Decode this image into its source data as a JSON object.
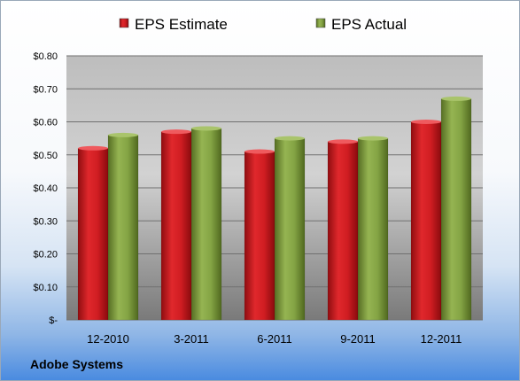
{
  "chart_data": {
    "type": "bar",
    "categories": [
      "12-2010",
      "3-2011",
      "6-2011",
      "9-2011",
      "12-2011"
    ],
    "series": [
      {
        "name": "EPS Estimate",
        "color": "#c8181d",
        "values": [
          0.52,
          0.57,
          0.51,
          0.54,
          0.6
        ]
      },
      {
        "name": "EPS Actual",
        "color": "#7f9e3c",
        "values": [
          0.56,
          0.58,
          0.55,
          0.55,
          0.67
        ]
      }
    ],
    "yticks": [
      {
        "value": 0,
        "label": "$-"
      },
      {
        "value": 0.1,
        "label": "$0.10"
      },
      {
        "value": 0.2,
        "label": "$0.20"
      },
      {
        "value": 0.3,
        "label": "$0.30"
      },
      {
        "value": 0.4,
        "label": "$0.40"
      },
      {
        "value": 0.5,
        "label": "$0.50"
      },
      {
        "value": 0.6,
        "label": "$0.60"
      },
      {
        "value": 0.7,
        "label": "$0.70"
      },
      {
        "value": 0.8,
        "label": "$0.80"
      }
    ],
    "ylim": [
      0,
      0.8
    ],
    "grid": true,
    "legend_position": "top"
  },
  "footer": {
    "company": "Adobe Systems"
  }
}
